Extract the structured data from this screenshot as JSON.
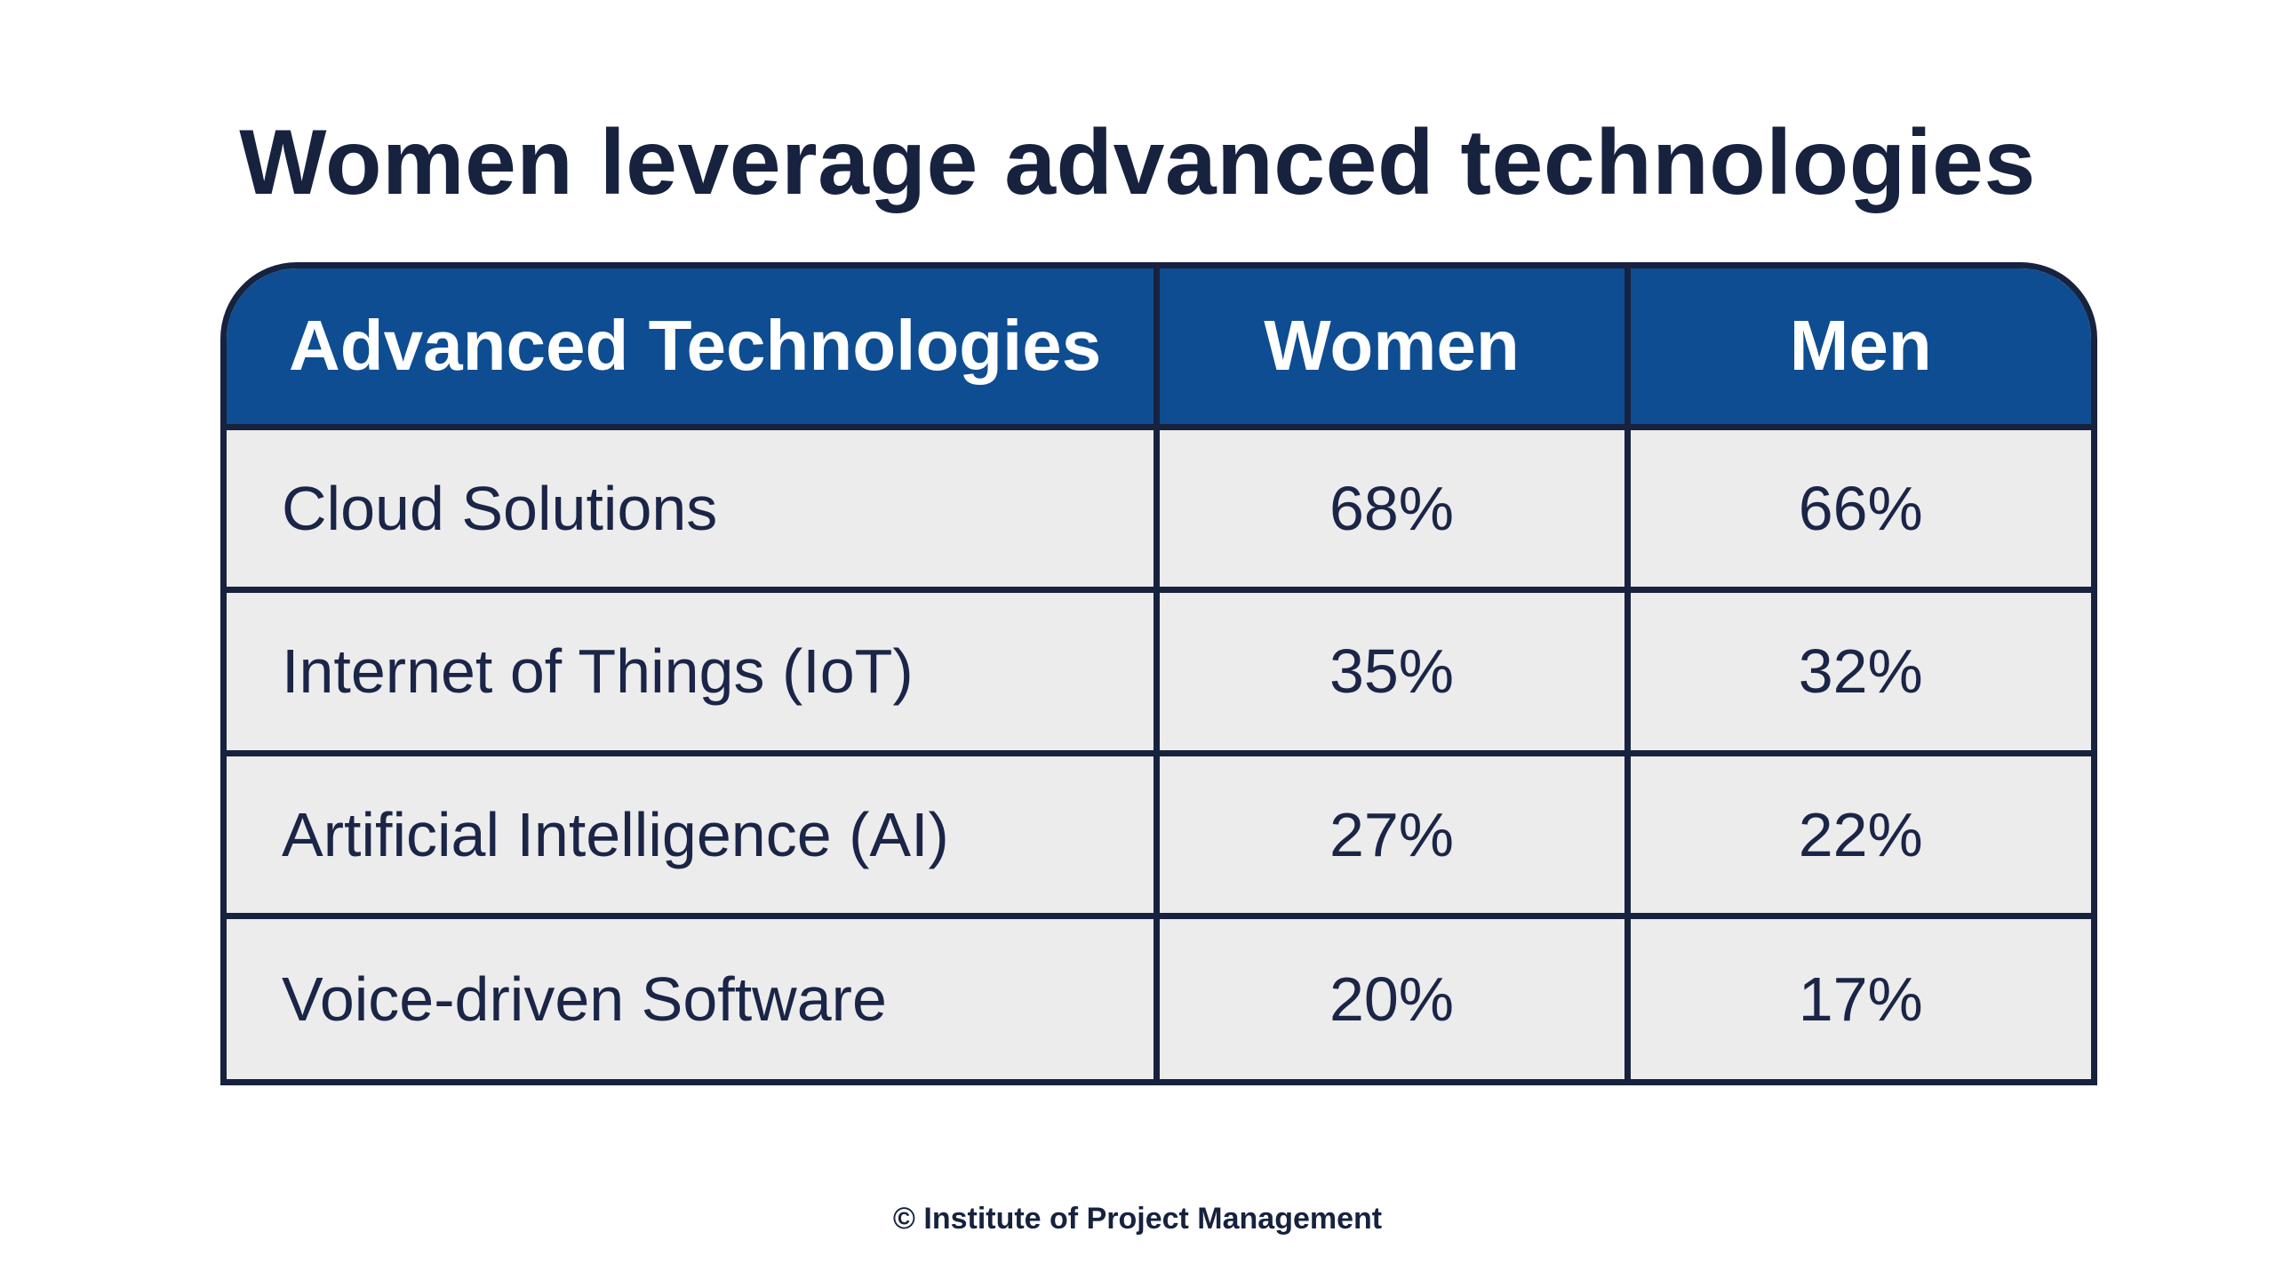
{
  "title": "Women leverage advanced technologies",
  "chart_data": {
    "type": "table",
    "columns": [
      "Advanced Technologies",
      "Women",
      "Men"
    ],
    "rows": [
      {
        "technology": "Cloud Solutions",
        "women": "68%",
        "men": "66%"
      },
      {
        "technology": "Internet of Things (IoT)",
        "women": "35%",
        "men": "32%"
      },
      {
        "technology": "Artificial Intelligence (AI)",
        "women": "27%",
        "men": "22%"
      },
      {
        "technology": "Voice-driven Software",
        "women": "20%",
        "men": "17%"
      }
    ]
  },
  "footer": "© Institute of Project Management",
  "colors": {
    "header_bg": "#0e4d91",
    "border": "#17223f",
    "cell_bg": "#ececec",
    "text": "#1a2547"
  }
}
